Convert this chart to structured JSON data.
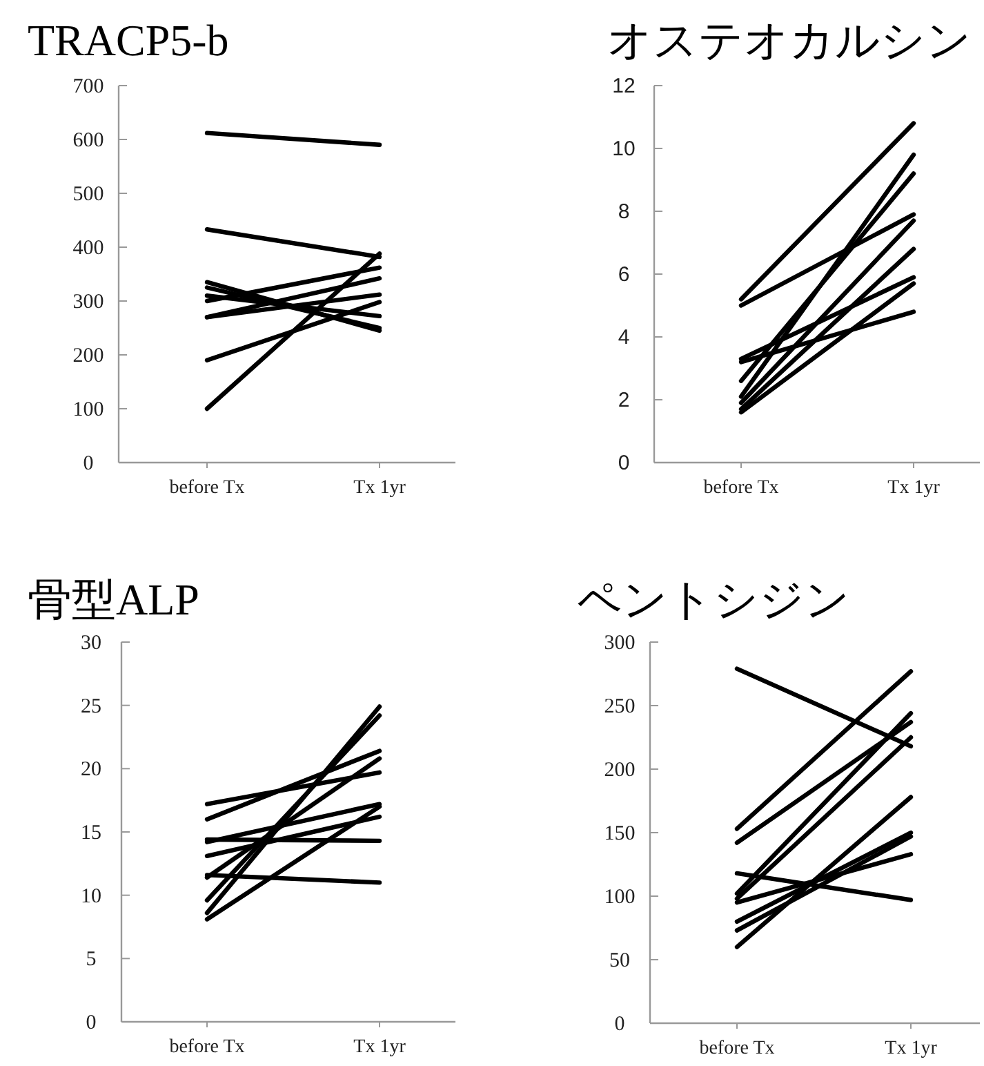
{
  "chart_data": [
    {
      "type": "line",
      "title": "TRACP5-b",
      "categories": [
        "before Tx",
        "Tx 1yr"
      ],
      "ylim": [
        0,
        700
      ],
      "yticks": [
        0,
        100,
        200,
        300,
        400,
        500,
        600,
        700
      ],
      "grid": false,
      "marker": "none",
      "series": [
        {
          "color": "#000000",
          "values": [
            612,
            590
          ]
        },
        {
          "color": "#000000",
          "values": [
            433,
            382
          ]
        },
        {
          "color": "#000000",
          "values": [
            100,
            388
          ]
        },
        {
          "color": "#000000",
          "values": [
            190,
            298
          ]
        },
        {
          "color": "#000000",
          "values": [
            270,
            342
          ]
        },
        {
          "color": "#000000",
          "values": [
            270,
            312
          ]
        },
        {
          "color": "#000000",
          "values": [
            300,
            362
          ]
        },
        {
          "color": "#000000",
          "values": [
            310,
            272
          ]
        },
        {
          "color": "#000000",
          "values": [
            325,
            250
          ]
        },
        {
          "color": "#000000",
          "values": [
            335,
            245
          ]
        }
      ]
    },
    {
      "type": "line",
      "title": "オステオカルシン",
      "categories": [
        "before Tx",
        "Tx 1yr"
      ],
      "ylim": [
        0,
        12
      ],
      "yticks": [
        0,
        2,
        4,
        6,
        8,
        10,
        12
      ],
      "grid": false,
      "marker": "none",
      "series": [
        {
          "color": "#000000",
          "values": [
            5.2,
            10.8
          ]
        },
        {
          "color": "#000000",
          "values": [
            5.0,
            7.9
          ]
        },
        {
          "color": "#000000",
          "values": [
            3.3,
            5.9
          ]
        },
        {
          "color": "#000000",
          "values": [
            3.2,
            4.8
          ]
        },
        {
          "color": "#000000",
          "values": [
            2.6,
            9.2
          ]
        },
        {
          "color": "#000000",
          "values": [
            2.1,
            9.8
          ]
        },
        {
          "color": "#000000",
          "values": [
            1.9,
            7.7
          ]
        },
        {
          "color": "#000000",
          "values": [
            1.7,
            6.8
          ]
        },
        {
          "color": "#000000",
          "values": [
            1.6,
            5.7
          ]
        }
      ]
    },
    {
      "type": "line",
      "title": "骨型ALP",
      "categories": [
        "before Tx",
        "Tx 1yr"
      ],
      "ylim": [
        0,
        30
      ],
      "yticks": [
        0,
        5,
        10,
        15,
        20,
        25,
        30
      ],
      "grid": false,
      "marker": "none",
      "series": [
        {
          "color": "#000000",
          "values": [
            17.2,
            19.7
          ]
        },
        {
          "color": "#000000",
          "values": [
            16.0,
            21.4
          ]
        },
        {
          "color": "#000000",
          "values": [
            14.4,
            14.3
          ]
        },
        {
          "color": "#000000",
          "values": [
            14.2,
            17.2
          ]
        },
        {
          "color": "#000000",
          "values": [
            13.1,
            16.2
          ]
        },
        {
          "color": "#000000",
          "values": [
            11.6,
            11.0
          ]
        },
        {
          "color": "#000000",
          "values": [
            11.4,
            20.8
          ]
        },
        {
          "color": "#000000",
          "values": [
            9.6,
            24.2
          ]
        },
        {
          "color": "#000000",
          "values": [
            8.6,
            24.9
          ]
        },
        {
          "color": "#000000",
          "values": [
            8.1,
            17.0
          ]
        }
      ]
    },
    {
      "type": "line",
      "title": "ペントシジン",
      "categories": [
        "before Tx",
        "Tx 1yr"
      ],
      "ylim": [
        0,
        300
      ],
      "yticks": [
        0,
        50,
        100,
        150,
        200,
        250,
        300
      ],
      "grid": false,
      "marker": "none",
      "series": [
        {
          "color": "#000000",
          "values": [
            279,
            218
          ]
        },
        {
          "color": "#000000",
          "values": [
            153,
            277
          ]
        },
        {
          "color": "#000000",
          "values": [
            142,
            237
          ]
        },
        {
          "color": "#000000",
          "values": [
            118,
            97
          ]
        },
        {
          "color": "#000000",
          "values": [
            102,
            244
          ]
        },
        {
          "color": "#000000",
          "values": [
            98,
            225
          ]
        },
        {
          "color": "#000000",
          "values": [
            95,
            133
          ]
        },
        {
          "color": "#000000",
          "values": [
            80,
            150
          ]
        },
        {
          "color": "#000000",
          "values": [
            73,
            147
          ]
        },
        {
          "color": "#000000",
          "values": [
            60,
            178
          ]
        }
      ]
    }
  ]
}
